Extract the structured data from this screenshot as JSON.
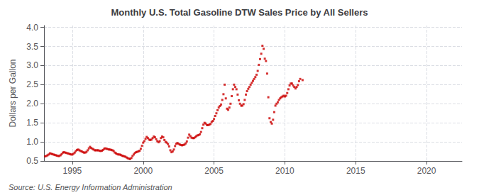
{
  "chart_data": {
    "type": "scatter",
    "title": "Monthly U.S. Total Gasoline DTW Sales Price by All Sellers",
    "ylabel": "Dollars per Gallon",
    "annotations": [
      "Source: U.S. Energy Information Administration"
    ],
    "color": "#cc0000",
    "marker": "square",
    "grid": true,
    "xlim": [
      1993.0,
      2022.5
    ],
    "xticks": [
      1995,
      2000,
      2005,
      2010,
      2015,
      2020
    ],
    "ylim": [
      0.5,
      4.05
    ],
    "yticks": [
      0.5,
      {
        "value": 1.0,
        "label": "1.0"
      },
      1.5,
      {
        "value": 2.0,
        "label": "2.0"
      },
      2.5,
      {
        "value": 3.0,
        "label": "3.0"
      },
      3.5,
      {
        "value": 4.0,
        "label": "4.0"
      }
    ],
    "x": [
      1993.083,
      1993.167,
      1993.25,
      1993.333,
      1993.417,
      1993.5,
      1993.583,
      1993.667,
      1993.75,
      1993.833,
      1993.917,
      1994.0,
      1994.083,
      1994.167,
      1994.25,
      1994.333,
      1994.417,
      1994.5,
      1994.583,
      1994.667,
      1994.75,
      1994.833,
      1994.917,
      1995.0,
      1995.083,
      1995.167,
      1995.25,
      1995.333,
      1995.417,
      1995.5,
      1995.583,
      1995.667,
      1995.75,
      1995.833,
      1995.917,
      1996.0,
      1996.083,
      1996.167,
      1996.25,
      1996.333,
      1996.417,
      1996.5,
      1996.583,
      1996.667,
      1996.75,
      1996.833,
      1996.917,
      1997.0,
      1997.083,
      1997.167,
      1997.25,
      1997.333,
      1997.417,
      1997.5,
      1997.583,
      1997.667,
      1997.75,
      1997.833,
      1997.917,
      1998.0,
      1998.083,
      1998.167,
      1998.25,
      1998.333,
      1998.417,
      1998.5,
      1998.583,
      1998.667,
      1998.75,
      1998.833,
      1998.917,
      1999.0,
      1999.083,
      1999.167,
      1999.25,
      1999.333,
      1999.417,
      1999.5,
      1999.583,
      1999.667,
      1999.75,
      1999.833,
      1999.917,
      2000.0,
      2000.083,
      2000.167,
      2000.25,
      2000.333,
      2000.417,
      2000.5,
      2000.583,
      2000.667,
      2000.75,
      2000.833,
      2000.917,
      2001.0,
      2001.083,
      2001.167,
      2001.25,
      2001.333,
      2001.417,
      2001.5,
      2001.583,
      2001.667,
      2001.75,
      2001.833,
      2001.917,
      2002.0,
      2002.083,
      2002.167,
      2002.25,
      2002.333,
      2002.417,
      2002.5,
      2002.583,
      2002.667,
      2002.75,
      2002.833,
      2002.917,
      2003.0,
      2003.083,
      2003.167,
      2003.25,
      2003.333,
      2003.417,
      2003.5,
      2003.583,
      2003.667,
      2003.75,
      2003.833,
      2003.917,
      2004.0,
      2004.083,
      2004.167,
      2004.25,
      2004.333,
      2004.417,
      2004.5,
      2004.583,
      2004.667,
      2004.75,
      2004.833,
      2004.917,
      2005.0,
      2005.083,
      2005.167,
      2005.25,
      2005.333,
      2005.417,
      2005.5,
      2005.583,
      2005.667,
      2005.75,
      2005.833,
      2005.917,
      2006.0,
      2006.083,
      2006.167,
      2006.25,
      2006.333,
      2006.417,
      2006.5,
      2006.583,
      2006.667,
      2006.75,
      2006.833,
      2006.917,
      2007.0,
      2007.083,
      2007.167,
      2007.25,
      2007.333,
      2007.417,
      2007.5,
      2007.583,
      2007.667,
      2007.75,
      2007.833,
      2007.917,
      2008.0,
      2008.083,
      2008.167,
      2008.25,
      2008.333,
      2008.417,
      2008.5,
      2008.583,
      2008.667,
      2008.75,
      2008.833,
      2008.917,
      2009.0,
      2009.083,
      2009.167,
      2009.25,
      2009.333,
      2009.417,
      2009.5,
      2009.583,
      2009.667,
      2009.75,
      2009.833,
      2009.917,
      2010.0,
      2010.083,
      2010.167,
      2010.25,
      2010.333,
      2010.417,
      2010.5,
      2010.583,
      2010.667,
      2010.75,
      2010.833,
      2010.917,
      2011.0,
      2011.083,
      2011.25
    ],
    "values": [
      0.62,
      0.63,
      0.65,
      0.67,
      0.7,
      0.69,
      0.68,
      0.67,
      0.66,
      0.65,
      0.64,
      0.63,
      0.63,
      0.65,
      0.68,
      0.72,
      0.73,
      0.72,
      0.71,
      0.7,
      0.69,
      0.68,
      0.67,
      0.67,
      0.69,
      0.72,
      0.76,
      0.79,
      0.8,
      0.78,
      0.76,
      0.75,
      0.73,
      0.72,
      0.72,
      0.74,
      0.78,
      0.83,
      0.87,
      0.84,
      0.82,
      0.8,
      0.78,
      0.78,
      0.78,
      0.78,
      0.77,
      0.76,
      0.77,
      0.79,
      0.82,
      0.83,
      0.82,
      0.81,
      0.8,
      0.8,
      0.79,
      0.78,
      0.76,
      0.72,
      0.7,
      0.68,
      0.67,
      0.67,
      0.66,
      0.64,
      0.63,
      0.62,
      0.61,
      0.59,
      0.57,
      0.56,
      0.55,
      0.58,
      0.63,
      0.67,
      0.71,
      0.73,
      0.74,
      0.75,
      0.77,
      0.82,
      0.9,
      0.98,
      1.02,
      1.08,
      1.13,
      1.1,
      1.06,
      1.05,
      1.06,
      1.1,
      1.14,
      1.12,
      1.07,
      1.02,
      0.99,
      1.02,
      1.1,
      1.14,
      1.12,
      1.05,
      1.0,
      0.98,
      0.94,
      0.88,
      0.78,
      0.73,
      0.75,
      0.8,
      0.89,
      0.95,
      0.97,
      0.95,
      0.93,
      0.92,
      0.91,
      0.92,
      0.93,
      0.96,
      1.01,
      1.11,
      1.19,
      1.15,
      1.11,
      1.1,
      1.1,
      1.12,
      1.15,
      1.17,
      1.18,
      1.2,
      1.26,
      1.36,
      1.45,
      1.5,
      1.48,
      1.44,
      1.44,
      1.45,
      1.47,
      1.52,
      1.55,
      1.6,
      1.68,
      1.75,
      1.83,
      1.9,
      1.94,
      1.98,
      2.1,
      2.25,
      2.5,
      2.14,
      1.87,
      1.84,
      1.9,
      2.0,
      2.2,
      2.38,
      2.5,
      2.44,
      2.38,
      2.24,
      2.09,
      2.0,
      1.95,
      1.95,
      1.99,
      2.1,
      2.24,
      2.33,
      2.39,
      2.44,
      2.5,
      2.55,
      2.6,
      2.65,
      2.7,
      2.76,
      2.86,
      3.02,
      3.17,
      3.31,
      3.52,
      3.44,
      3.18,
      3.12,
      2.79,
      2.17,
      1.62,
      1.52,
      1.48,
      1.58,
      1.78,
      1.95,
      2.0,
      2.04,
      2.1,
      2.14,
      2.17,
      2.19,
      2.21,
      2.19,
      2.21,
      2.28,
      2.38,
      2.48,
      2.53,
      2.53,
      2.48,
      2.44,
      2.4,
      2.44,
      2.49,
      2.59,
      2.65,
      2.62
    ]
  }
}
